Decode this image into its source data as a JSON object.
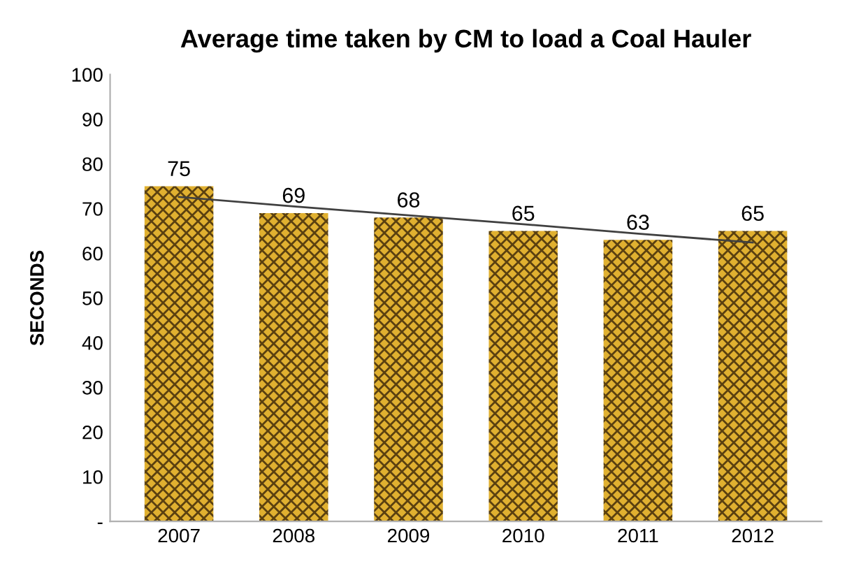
{
  "chart_data": {
    "type": "bar",
    "title": "Average time taken by CM to load a Coal Hauler",
    "ylabel": "SECONDS",
    "categories": [
      "2007",
      "2008",
      "2009",
      "2010",
      "2011",
      "2012"
    ],
    "series": [
      {
        "color": "#e0b030",
        "values": [
          75,
          69,
          68,
          65,
          63,
          65
        ],
        "value_labels": [
          "75",
          "69",
          "68",
          "65",
          "63",
          "65"
        ]
      },
      {
        "type": "line",
        "color": "#404040",
        "values": [
          72.6,
          70.5,
          68.5,
          66.5,
          64.4,
          62.4
        ]
      }
    ],
    "ylim": [
      0,
      100
    ],
    "yticks": [
      {
        "value": 0,
        "label": "-"
      },
      10,
      20,
      30,
      40,
      50,
      60,
      70,
      80,
      90,
      100
    ],
    "grid": false,
    "legend": false
  }
}
